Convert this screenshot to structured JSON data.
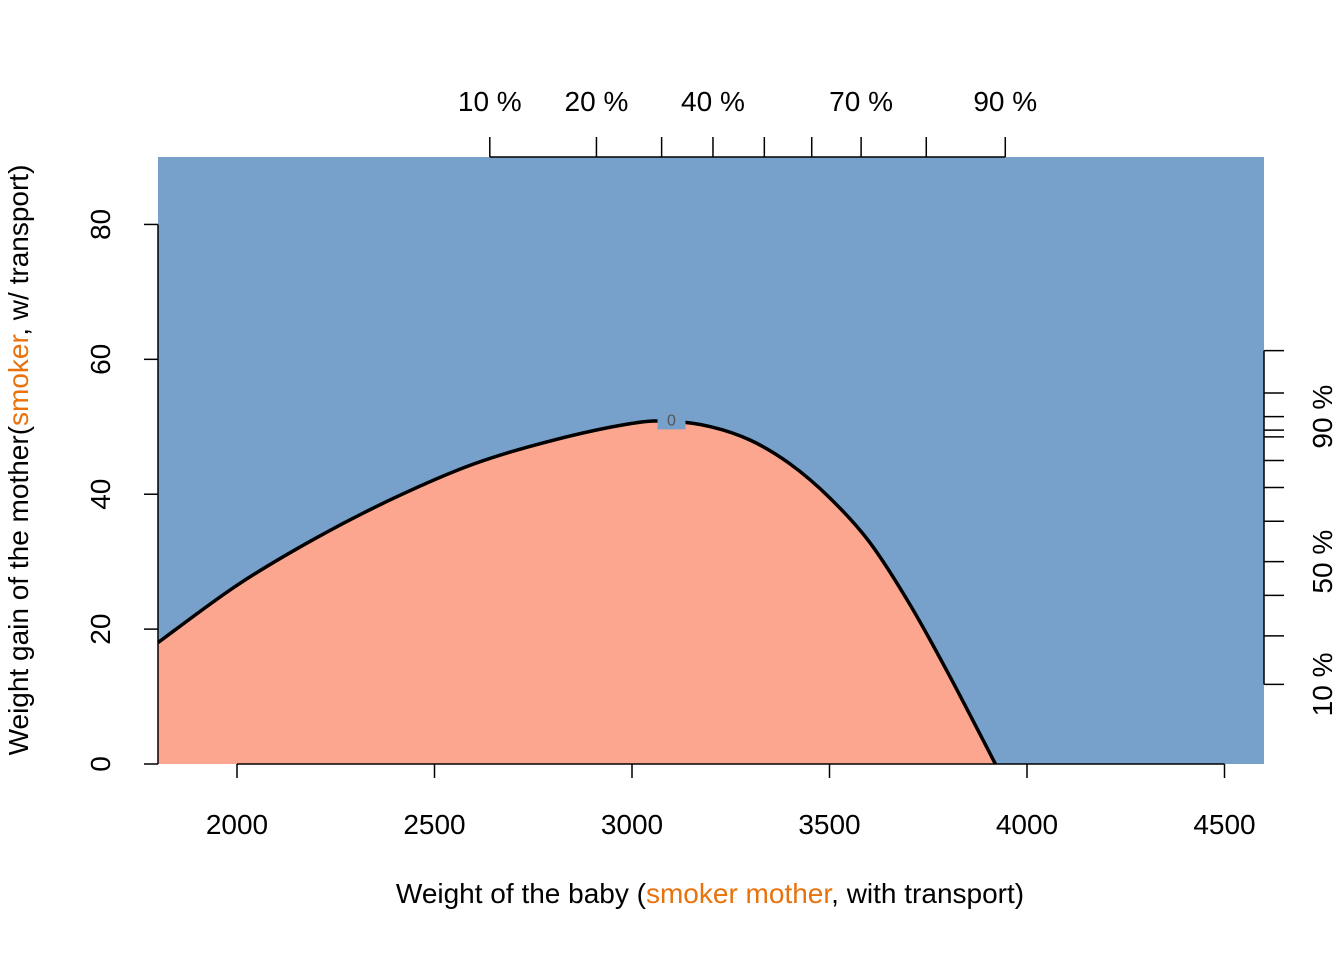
{
  "chart_data": {
    "type": "area",
    "xlim": [
      1800,
      4600
    ],
    "ylim": [
      0,
      90
    ],
    "x_ticks": [
      2000,
      2500,
      3000,
      3500,
      4000,
      4500
    ],
    "y_ticks": [
      0,
      20,
      40,
      60,
      80
    ],
    "xlabel": {
      "pre": "Weight of the baby (",
      "highlight": "smoker mother",
      "post": ", with transport)"
    },
    "ylabel": {
      "pre": "Weight gain of the mother(",
      "highlight": "smoker",
      "post": ", w/ transport)"
    },
    "highlight_color": "#E8720C",
    "region_colors": {
      "above_boundary": "#77A1CB",
      "below_boundary": "#FCA68F"
    },
    "boundary": {
      "contour_label": "0",
      "points": [
        [
          1800,
          18
        ],
        [
          2000,
          26.5
        ],
        [
          2200,
          33.5
        ],
        [
          2400,
          39.5
        ],
        [
          2600,
          44.5
        ],
        [
          2800,
          48
        ],
        [
          3000,
          50.5
        ],
        [
          3100,
          50.8
        ],
        [
          3200,
          50
        ],
        [
          3300,
          48
        ],
        [
          3400,
          44.5
        ],
        [
          3500,
          39.5
        ],
        [
          3600,
          33
        ],
        [
          3700,
          24
        ],
        [
          3800,
          13.5
        ],
        [
          3920,
          0
        ]
      ]
    },
    "top_quantiles": {
      "x_values": [
        2640,
        2910,
        3075,
        3205,
        3335,
        3455,
        3580,
        3745,
        3945
      ],
      "labels": [
        {
          "text": "10 %",
          "x": 2640
        },
        {
          "text": "20 %",
          "x": 2910
        },
        {
          "text": "40 %",
          "x": 3205
        },
        {
          "text": "70 %",
          "x": 3580
        },
        {
          "text": "90 %",
          "x": 3945
        }
      ]
    },
    "right_quantiles": {
      "y_values": [
        11.8,
        19,
        25,
        30,
        36,
        41,
        45,
        48.5,
        49.5,
        51.5,
        55,
        61.3
      ],
      "labels": [
        {
          "text": "10 %",
          "y": 11.8
        },
        {
          "text": "50 %",
          "y": 30
        },
        {
          "text": "90 %",
          "y": 51.5
        }
      ]
    }
  }
}
